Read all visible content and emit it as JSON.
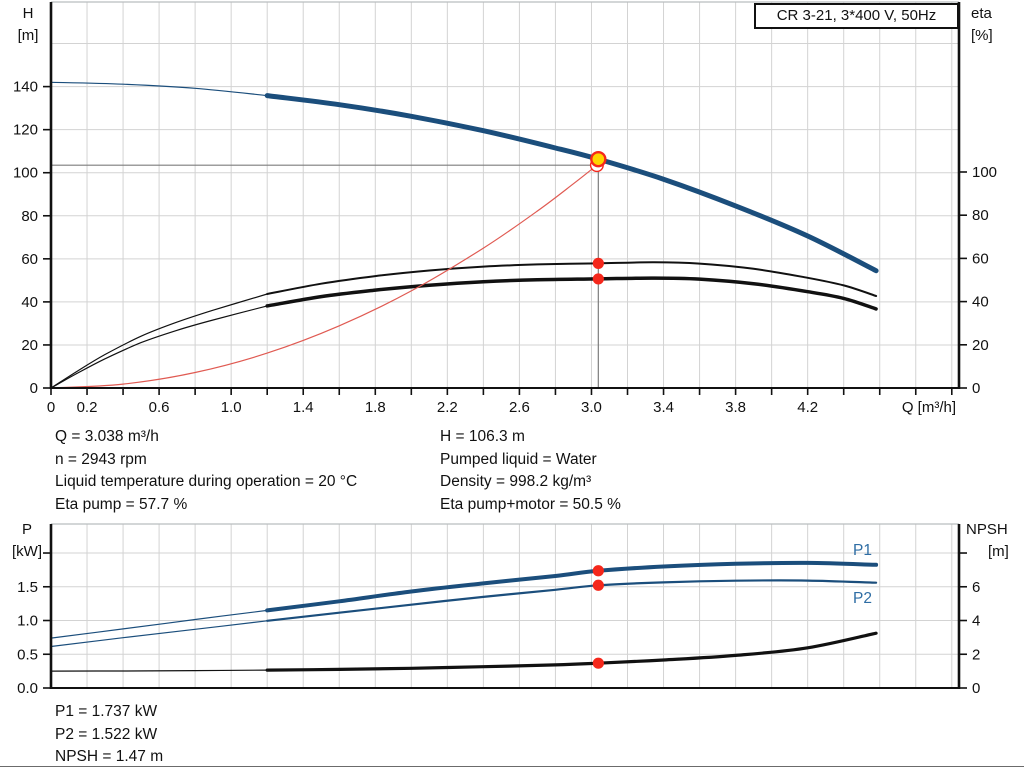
{
  "title_box": {
    "label": "CR 3-21, 3*400 V, 50Hz"
  },
  "colors": {
    "curve_blue": "#1b4e7c",
    "label_blue": "#2e6da4",
    "red": "#f5271b",
    "system_red": "#e05a52",
    "yellow": "#ffd400",
    "black": "#111111",
    "grid": "#d3d3d3",
    "frame": "#b9bdbf",
    "crosshair": "#7d7d7d"
  },
  "info_mid_left": {
    "lines": [
      "Q = 3.038 m³/h",
      "n = 2943 rpm",
      "Liquid temperature during operation = 20 °C",
      "Eta pump = 57.7 %"
    ]
  },
  "info_mid_right": {
    "lines": [
      "H = 106.3 m",
      "Pumped liquid = Water",
      "Density = 998.2 kg/m³",
      "Eta pump+motor = 50.5 %"
    ]
  },
  "info_bottom": {
    "lines": [
      "P1 = 1.737 kW",
      "P2 = 1.522 kW",
      "NPSH = 1.47 m"
    ]
  },
  "chart_data": [
    {
      "type": "line",
      "title": "CR 3-21, 3*400 V, 50Hz",
      "x_axis": {
        "label": "Q [m³/h]",
        "min": 0,
        "max": 5.04,
        "tick_step": 0.2,
        "tick_max": 5.0,
        "labels": [
          {
            "v": 0,
            "t": "0"
          },
          {
            "v": 0.2,
            "t": "0.2"
          },
          {
            "v": 0.6,
            "t": "0.6"
          },
          {
            "v": 1.0,
            "t": "1.0"
          },
          {
            "v": 1.4,
            "t": "1.4"
          },
          {
            "v": 1.8,
            "t": "1.8"
          },
          {
            "v": 2.2,
            "t": "2.2"
          },
          {
            "v": 2.6,
            "t": "2.6"
          },
          {
            "v": 3.0,
            "t": "3.0"
          },
          {
            "v": 3.4,
            "t": "3.4"
          },
          {
            "v": 3.8,
            "t": "3.8"
          },
          {
            "v": 4.2,
            "t": "4.2"
          }
        ]
      },
      "left_axis": {
        "name": "H",
        "unit": "[m]",
        "min": 0,
        "max": 179.3,
        "grid_step": 20,
        "grid_max": 160,
        "labels": [
          {
            "v": 0,
            "t": "0"
          },
          {
            "v": 20,
            "t": "20"
          },
          {
            "v": 40,
            "t": "40"
          },
          {
            "v": 60,
            "t": "60"
          },
          {
            "v": 80,
            "t": "80"
          },
          {
            "v": 100,
            "t": "100"
          },
          {
            "v": 120,
            "t": "120"
          },
          {
            "v": 140,
            "t": "140"
          }
        ],
        "unlabeled_ticks": []
      },
      "right_axis": {
        "name": "eta",
        "unit": "[%]",
        "min": 0,
        "max": 178.7,
        "labels": [
          {
            "v": 0,
            "t": "0"
          },
          {
            "v": 20,
            "t": "20"
          },
          {
            "v": 40,
            "t": "40"
          },
          {
            "v": 60,
            "t": "60"
          },
          {
            "v": 80,
            "t": "80"
          },
          {
            "v": 100,
            "t": "100"
          }
        ],
        "unlabeled_ticks": []
      },
      "series": [
        {
          "name": "head-curve",
          "label": "",
          "axis": "left",
          "color_key": "curve_blue",
          "width": 5,
          "thin_until": 1.2,
          "points": [
            [
              0,
              142
            ],
            [
              0.4,
              141.1
            ],
            [
              0.8,
              139.2
            ],
            [
              1.2,
              135.8
            ],
            [
              1.6,
              131.6
            ],
            [
              2.0,
              126.2
            ],
            [
              2.4,
              119.5
            ],
            [
              2.8,
              111.5
            ],
            [
              3.038,
              106.3
            ],
            [
              3.4,
              97
            ],
            [
              3.8,
              84.6
            ],
            [
              4.2,
              70.6
            ],
            [
              4.58,
              54.5
            ]
          ]
        },
        {
          "name": "eta-pump",
          "label": "",
          "axis": "right",
          "color_key": "black",
          "width": 2,
          "thin_until": 1.2,
          "points": [
            [
              0,
              0
            ],
            [
              0.15,
              8
            ],
            [
              0.3,
              15.5
            ],
            [
              0.5,
              24
            ],
            [
              0.7,
              30.5
            ],
            [
              0.9,
              36
            ],
            [
              1.2,
              43.5
            ],
            [
              1.5,
              48.3
            ],
            [
              1.8,
              51.8
            ],
            [
              2.1,
              54.4
            ],
            [
              2.4,
              56.2
            ],
            [
              2.7,
              57.2
            ],
            [
              3.038,
              57.7
            ],
            [
              3.35,
              58.2
            ],
            [
              3.6,
              57.6
            ],
            [
              3.9,
              55.2
            ],
            [
              4.2,
              51
            ],
            [
              4.4,
              47.5
            ],
            [
              4.58,
              42.6
            ]
          ]
        },
        {
          "name": "eta-pump-motor",
          "label": "",
          "axis": "right",
          "color_key": "black",
          "width": 3.5,
          "thin_until": 1.2,
          "points": [
            [
              0,
              0
            ],
            [
              0.15,
              7
            ],
            [
              0.3,
              13.5
            ],
            [
              0.5,
              21
            ],
            [
              0.7,
              26.7
            ],
            [
              0.9,
              31.5
            ],
            [
              1.2,
              38
            ],
            [
              1.5,
              42.3
            ],
            [
              1.8,
              45.3
            ],
            [
              2.1,
              47.6
            ],
            [
              2.4,
              49.2
            ],
            [
              2.7,
              50.1
            ],
            [
              3.038,
              50.5
            ],
            [
              3.35,
              50.9
            ],
            [
              3.6,
              50.4
            ],
            [
              3.9,
              48.3
            ],
            [
              4.2,
              44.6
            ],
            [
              4.4,
              41.5
            ],
            [
              4.58,
              36.6
            ]
          ]
        },
        {
          "name": "system-curve",
          "label": "",
          "axis": "left",
          "color_key": "system_red",
          "width": 1.2,
          "points": [
            [
              0,
              0
            ],
            [
              0.4,
              1.8
            ],
            [
              0.8,
              7.2
            ],
            [
              1.2,
              16.2
            ],
            [
              1.6,
              28.9
            ],
            [
              2.0,
              45.1
            ],
            [
              2.4,
              65
            ],
            [
              2.7,
              82.2
            ],
            [
              2.9,
              94.9
            ],
            [
              3.03,
              103.5
            ]
          ]
        }
      ],
      "markers": {
        "duty_point": {
          "q": 3.038,
          "H": 106.3
        },
        "system_end_ring": {
          "q": 3.03,
          "H": 103.5
        },
        "eta_dots": [
          {
            "q": 3.038,
            "v": 57.7
          },
          {
            "q": 3.038,
            "v": 50.5
          }
        ],
        "crosshair": true
      }
    },
    {
      "type": "line",
      "x_axis": {
        "label": "",
        "min": 0,
        "max": 5.04,
        "tick_step": 0.2,
        "tick_max": 5.0,
        "labels": []
      },
      "left_axis": {
        "name": "P",
        "unit": "[kW]",
        "min": 0,
        "max": 2.43,
        "grid_step": 0.5,
        "grid_max": 2.0,
        "labels": [
          {
            "v": 0,
            "t": "0.0"
          },
          {
            "v": 0.5,
            "t": "0.5"
          },
          {
            "v": 1.0,
            "t": "1.0"
          },
          {
            "v": 1.5,
            "t": "1.5"
          }
        ],
        "unlabeled_ticks": [
          2.0
        ]
      },
      "right_axis": {
        "name": "NPSH",
        "unit": "[m]",
        "min": 0,
        "max": 9.72,
        "labels": [
          {
            "v": 0,
            "t": "0"
          },
          {
            "v": 2,
            "t": "2"
          },
          {
            "v": 4,
            "t": "4"
          },
          {
            "v": 6,
            "t": "6"
          }
        ],
        "unlabeled_ticks": [
          8
        ]
      },
      "series": [
        {
          "name": "P1-curve",
          "label": "P1",
          "axis": "left",
          "color_key": "curve_blue",
          "width": 4,
          "thin_until": 1.2,
          "points": [
            [
              0,
              0.74
            ],
            [
              0.4,
              0.875
            ],
            [
              0.8,
              1.015
            ],
            [
              1.2,
              1.15
            ],
            [
              1.6,
              1.285
            ],
            [
              2.0,
              1.43
            ],
            [
              2.4,
              1.55
            ],
            [
              2.8,
              1.66
            ],
            [
              3.038,
              1.737
            ],
            [
              3.4,
              1.8
            ],
            [
              3.8,
              1.84
            ],
            [
              4.2,
              1.853
            ],
            [
              4.58,
              1.825
            ]
          ]
        },
        {
          "name": "P2-curve",
          "label": "P2",
          "axis": "left",
          "color_key": "curve_blue",
          "width": 2.2,
          "thin_until": 1.2,
          "points": [
            [
              0,
              0.615
            ],
            [
              0.4,
              0.745
            ],
            [
              0.8,
              0.87
            ],
            [
              1.2,
              0.995
            ],
            [
              1.6,
              1.115
            ],
            [
              2.0,
              1.235
            ],
            [
              2.4,
              1.35
            ],
            [
              2.8,
              1.455
            ],
            [
              3.038,
              1.522
            ],
            [
              3.4,
              1.565
            ],
            [
              3.8,
              1.59
            ],
            [
              4.2,
              1.592
            ],
            [
              4.58,
              1.56
            ]
          ]
        },
        {
          "name": "NPSH-curve",
          "label": "",
          "axis": "right",
          "color_key": "black",
          "width": 3.2,
          "thin_until": 1.2,
          "points": [
            [
              0,
              1.0
            ],
            [
              0.4,
              1.01
            ],
            [
              0.8,
              1.03
            ],
            [
              1.2,
              1.06
            ],
            [
              1.6,
              1.1
            ],
            [
              2.0,
              1.17
            ],
            [
              2.4,
              1.26
            ],
            [
              2.8,
              1.37
            ],
            [
              3.038,
              1.47
            ],
            [
              3.4,
              1.66
            ],
            [
              3.8,
              1.93
            ],
            [
              4.2,
              2.38
            ],
            [
              4.58,
              3.25
            ]
          ]
        }
      ],
      "markers": {
        "dots": [
          {
            "q": 3.038,
            "axis": "left",
            "v": 1.737
          },
          {
            "q": 3.038,
            "axis": "left",
            "v": 1.522
          },
          {
            "q": 3.038,
            "axis": "right",
            "v": 1.47
          }
        ]
      }
    }
  ]
}
